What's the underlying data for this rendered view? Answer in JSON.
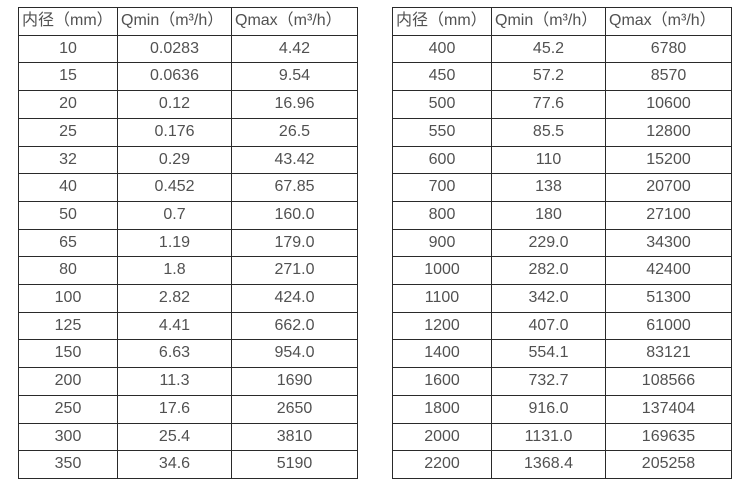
{
  "colors": {
    "background": "#ffffff",
    "table_border": "#2a2a2a",
    "text": "#515151"
  },
  "chart_data": [
    {
      "type": "table",
      "title": "",
      "headers": [
        "内径（mm）",
        "Qmin（m³/h）",
        "Qmax（m³/h）"
      ],
      "rows": [
        [
          "10",
          "0.0283",
          "4.42"
        ],
        [
          "15",
          "0.0636",
          "9.54"
        ],
        [
          "20",
          "0.12",
          "16.96"
        ],
        [
          "25",
          "0.176",
          "26.5"
        ],
        [
          "32",
          "0.29",
          "43.42"
        ],
        [
          "40",
          "0.452",
          "67.85"
        ],
        [
          "50",
          "0.7",
          "160.0"
        ],
        [
          "65",
          "1.19",
          "179.0"
        ],
        [
          "80",
          "1.8",
          "271.0"
        ],
        [
          "100",
          "2.82",
          "424.0"
        ],
        [
          "125",
          "4.41",
          "662.0"
        ],
        [
          "150",
          "6.63",
          "954.0"
        ],
        [
          "200",
          "11.3",
          "1690"
        ],
        [
          "250",
          "17.6",
          "2650"
        ],
        [
          "300",
          "25.4",
          "3810"
        ],
        [
          "350",
          "34.6",
          "5190"
        ]
      ]
    },
    {
      "type": "table",
      "title": "",
      "headers": [
        "内径（mm）",
        "Qmin（m³/h）",
        "Qmax（m³/h）"
      ],
      "rows": [
        [
          "400",
          "45.2",
          "6780"
        ],
        [
          "450",
          "57.2",
          "8570"
        ],
        [
          "500",
          "77.6",
          "10600"
        ],
        [
          "550",
          "85.5",
          "12800"
        ],
        [
          "600",
          "110",
          "15200"
        ],
        [
          "700",
          "138",
          "20700"
        ],
        [
          "800",
          "180",
          "27100"
        ],
        [
          "900",
          "229.0",
          "34300"
        ],
        [
          "1000",
          "282.0",
          "42400"
        ],
        [
          "1100",
          "342.0",
          "51300"
        ],
        [
          "1200",
          "407.0",
          "61000"
        ],
        [
          "1400",
          "554.1",
          "83121"
        ],
        [
          "1600",
          "732.7",
          "108566"
        ],
        [
          "1800",
          "916.0",
          "137404"
        ],
        [
          "2000",
          "1131.0",
          "169635"
        ],
        [
          "2200",
          "1368.4",
          "205258"
        ]
      ]
    }
  ]
}
